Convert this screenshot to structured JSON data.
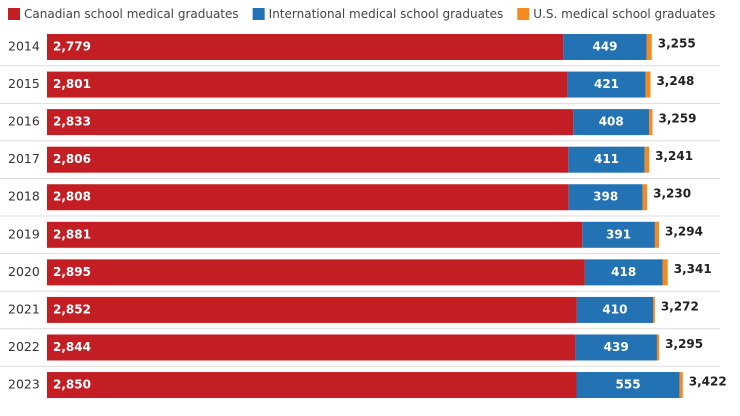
{
  "chart_data": {
    "type": "stacked-bar-horizontal",
    "categories": [
      "2014",
      "2015",
      "2016",
      "2017",
      "2018",
      "2019",
      "2020",
      "2021",
      "2022",
      "2023"
    ],
    "series": [
      {
        "name": "Canadian school medical graduates",
        "color": "#c41e25",
        "values": [
          2779,
          2801,
          2833,
          2806,
          2808,
          2881,
          2895,
          2852,
          2844,
          2850
        ],
        "value_labels": [
          "2,779",
          "2,801",
          "2,833",
          "2,806",
          "2,808",
          "2,881",
          "2,895",
          "2,852",
          "2,844",
          "2,850"
        ]
      },
      {
        "name": "International medical school graduates",
        "color": "#2272b4",
        "values": [
          449,
          421,
          408,
          411,
          398,
          391,
          418,
          410,
          439,
          555
        ]
      },
      {
        "name": "U.S. medical school graduates",
        "color": "#f58a1f",
        "values": [
          27,
          26,
          18,
          24,
          24,
          22,
          28,
          10,
          12,
          17
        ]
      }
    ],
    "totals": [
      3255,
      3248,
      3259,
      3241,
      3230,
      3294,
      3341,
      3272,
      3295,
      3422
    ],
    "total_labels": [
      "3,255",
      "3,248",
      "3,259",
      "3,241",
      "3,230",
      "3,294",
      "3,341",
      "3,272",
      "3,295",
      "3,422"
    ],
    "xlim": [
      0,
      3730
    ]
  }
}
